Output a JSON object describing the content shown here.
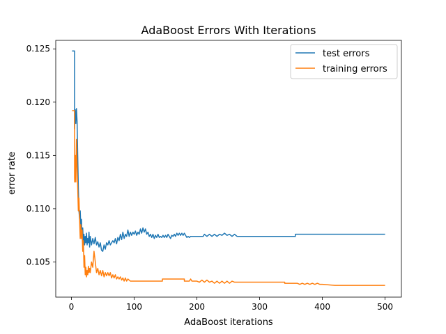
{
  "chart_data": {
    "type": "line",
    "title": "AdaBoost Errors With Iterations",
    "xlabel": "AdaBoost iterations",
    "ylabel": "error rate",
    "xlim": [
      -25,
      526
    ],
    "ylim": [
      0.1017,
      0.1258
    ],
    "xticks": [
      0,
      100,
      200,
      300,
      400,
      500
    ],
    "yticks": [
      0.105,
      0.11,
      0.115,
      0.12,
      0.125
    ],
    "ytick_labels": [
      "0.105",
      "0.110",
      "0.115",
      "0.120",
      "0.125"
    ],
    "grid": false,
    "legend_position": "top-right",
    "series": [
      {
        "name": "test errors",
        "color": "#1f77b4",
        "points": [
          [
            1,
            0.1248
          ],
          [
            5,
            0.1248
          ],
          [
            5,
            0.1175
          ],
          [
            6,
            0.1193
          ],
          [
            7,
            0.118
          ],
          [
            8,
            0.1194
          ],
          [
            9,
            0.1182
          ],
          [
            10,
            0.115
          ],
          [
            11,
            0.112
          ],
          [
            12,
            0.1098
          ],
          [
            13,
            0.109
          ],
          [
            14,
            0.1098
          ],
          [
            15,
            0.1082
          ],
          [
            16,
            0.109
          ],
          [
            17,
            0.1072
          ],
          [
            18,
            0.1082
          ],
          [
            19,
            0.1068
          ],
          [
            20,
            0.1076
          ],
          [
            21,
            0.1066
          ],
          [
            22,
            0.1074
          ],
          [
            23,
            0.1068
          ],
          [
            24,
            0.1077
          ],
          [
            25,
            0.1066
          ],
          [
            26,
            0.1072
          ],
          [
            27,
            0.1068
          ],
          [
            28,
            0.1078
          ],
          [
            29,
            0.1064
          ],
          [
            30,
            0.1074
          ],
          [
            32,
            0.1066
          ],
          [
            34,
            0.1072
          ],
          [
            36,
            0.1067
          ],
          [
            38,
            0.1073
          ],
          [
            40,
            0.1066
          ],
          [
            42,
            0.1069
          ],
          [
            44,
            0.1064
          ],
          [
            46,
            0.1068
          ],
          [
            48,
            0.1061
          ],
          [
            50,
            0.106
          ],
          [
            52,
            0.1066
          ],
          [
            54,
            0.1062
          ],
          [
            56,
            0.1068
          ],
          [
            58,
            0.1066
          ],
          [
            60,
            0.107
          ],
          [
            62,
            0.1066
          ],
          [
            64,
            0.1068
          ],
          [
            66,
            0.107
          ],
          [
            68,
            0.1068
          ],
          [
            70,
            0.1072
          ],
          [
            72,
            0.1067
          ],
          [
            74,
            0.1073
          ],
          [
            76,
            0.107
          ],
          [
            78,
            0.1076
          ],
          [
            80,
            0.1071
          ],
          [
            82,
            0.1078
          ],
          [
            84,
            0.1072
          ],
          [
            86,
            0.1076
          ],
          [
            88,
            0.1074
          ],
          [
            90,
            0.108
          ],
          [
            92,
            0.1074
          ],
          [
            94,
            0.1078
          ],
          [
            96,
            0.1075
          ],
          [
            98,
            0.1078
          ],
          [
            100,
            0.1076
          ],
          [
            102,
            0.1079
          ],
          [
            104,
            0.1075
          ],
          [
            106,
            0.1078
          ],
          [
            108,
            0.1076
          ],
          [
            110,
            0.1081
          ],
          [
            112,
            0.1077
          ],
          [
            114,
            0.1082
          ],
          [
            116,
            0.1078
          ],
          [
            118,
            0.1081
          ],
          [
            120,
            0.1076
          ],
          [
            122,
            0.1078
          ],
          [
            124,
            0.1074
          ],
          [
            126,
            0.1076
          ],
          [
            128,
            0.1073
          ],
          [
            130,
            0.1076
          ],
          [
            132,
            0.1072
          ],
          [
            134,
            0.1075
          ],
          [
            136,
            0.1073
          ],
          [
            138,
            0.1076
          ],
          [
            140,
            0.1073
          ],
          [
            142,
            0.1074
          ],
          [
            144,
            0.1073
          ],
          [
            146,
            0.1075
          ],
          [
            148,
            0.1073
          ],
          [
            150,
            0.1075
          ],
          [
            152,
            0.1073
          ],
          [
            154,
            0.1076
          ],
          [
            156,
            0.1074
          ],
          [
            158,
            0.1072
          ],
          [
            160,
            0.1075
          ],
          [
            162,
            0.1074
          ],
          [
            164,
            0.1076
          ],
          [
            166,
            0.1074
          ],
          [
            168,
            0.1077
          ],
          [
            170,
            0.1075
          ],
          [
            172,
            0.1077
          ],
          [
            174,
            0.1075
          ],
          [
            176,
            0.1077
          ],
          [
            178,
            0.1075
          ],
          [
            180,
            0.1077
          ],
          [
            182,
            0.1075
          ],
          [
            184,
            0.1073
          ],
          [
            186,
            0.1074
          ],
          [
            188,
            0.1073
          ],
          [
            190,
            0.1074
          ],
          [
            200,
            0.1074
          ],
          [
            210,
            0.1074
          ],
          [
            212,
            0.1076
          ],
          [
            216,
            0.1074
          ],
          [
            220,
            0.1076
          ],
          [
            224,
            0.1074
          ],
          [
            228,
            0.1076
          ],
          [
            232,
            0.1074
          ],
          [
            236,
            0.1076
          ],
          [
            240,
            0.1075
          ],
          [
            244,
            0.1077
          ],
          [
            248,
            0.1075
          ],
          [
            252,
            0.1076
          ],
          [
            256,
            0.1074
          ],
          [
            260,
            0.1076
          ],
          [
            264,
            0.1074
          ],
          [
            300,
            0.1074
          ],
          [
            357,
            0.1074
          ],
          [
            357,
            0.1076
          ],
          [
            400,
            0.1076
          ],
          [
            500,
            0.1076
          ]
        ]
      },
      {
        "name": "training errors",
        "color": "#ff7f0e",
        "points": [
          [
            1,
            0.1192
          ],
          [
            5,
            0.1192
          ],
          [
            5,
            0.1125
          ],
          [
            6,
            0.115
          ],
          [
            7,
            0.1125
          ],
          [
            8,
            0.1165
          ],
          [
            9,
            0.114
          ],
          [
            10,
            0.112
          ],
          [
            11,
            0.1098
          ],
          [
            12,
            0.111
          ],
          [
            13,
            0.109
          ],
          [
            14,
            0.1072
          ],
          [
            15,
            0.1085
          ],
          [
            16,
            0.1072
          ],
          [
            17,
            0.108
          ],
          [
            18,
            0.106
          ],
          [
            19,
            0.107
          ],
          [
            20,
            0.1045
          ],
          [
            21,
            0.1056
          ],
          [
            22,
            0.1038
          ],
          [
            23,
            0.1045
          ],
          [
            24,
            0.1036
          ],
          [
            25,
            0.1042
          ],
          [
            26,
            0.1038
          ],
          [
            27,
            0.1046
          ],
          [
            28,
            0.104
          ],
          [
            29,
            0.1044
          ],
          [
            30,
            0.104
          ],
          [
            32,
            0.105
          ],
          [
            34,
            0.1045
          ],
          [
            36,
            0.106
          ],
          [
            38,
            0.105
          ],
          [
            40,
            0.104
          ],
          [
            42,
            0.1044
          ],
          [
            44,
            0.1038
          ],
          [
            46,
            0.1042
          ],
          [
            48,
            0.1037
          ],
          [
            50,
            0.1042
          ],
          [
            52,
            0.1036
          ],
          [
            54,
            0.104
          ],
          [
            56,
            0.1037
          ],
          [
            58,
            0.104
          ],
          [
            60,
            0.1037
          ],
          [
            62,
            0.104
          ],
          [
            64,
            0.1035
          ],
          [
            66,
            0.1038
          ],
          [
            68,
            0.1035
          ],
          [
            70,
            0.1038
          ],
          [
            72,
            0.1034
          ],
          [
            74,
            0.1036
          ],
          [
            76,
            0.1034
          ],
          [
            78,
            0.1036
          ],
          [
            80,
            0.1033
          ],
          [
            82,
            0.1035
          ],
          [
            84,
            0.1032
          ],
          [
            86,
            0.1035
          ],
          [
            88,
            0.1032
          ],
          [
            90,
            0.1034
          ],
          [
            94,
            0.1032
          ],
          [
            100,
            0.1032
          ],
          [
            110,
            0.1032
          ],
          [
            120,
            0.1032
          ],
          [
            130,
            0.1032
          ],
          [
            140,
            0.1032
          ],
          [
            145,
            0.1032
          ],
          [
            145,
            0.1034
          ],
          [
            180,
            0.1034
          ],
          [
            180,
            0.1032
          ],
          [
            188,
            0.1032
          ],
          [
            190,
            0.1034
          ],
          [
            192,
            0.1032
          ],
          [
            200,
            0.1032
          ],
          [
            204,
            0.1031
          ],
          [
            208,
            0.1033
          ],
          [
            212,
            0.1031
          ],
          [
            216,
            0.1033
          ],
          [
            220,
            0.1031
          ],
          [
            224,
            0.1032
          ],
          [
            228,
            0.103
          ],
          [
            232,
            0.1032
          ],
          [
            236,
            0.103
          ],
          [
            240,
            0.1032
          ],
          [
            244,
            0.103
          ],
          [
            248,
            0.1032
          ],
          [
            252,
            0.103
          ],
          [
            256,
            0.1032
          ],
          [
            260,
            0.1031
          ],
          [
            262,
            0.1031
          ],
          [
            280,
            0.1031
          ],
          [
            300,
            0.1031
          ],
          [
            340,
            0.1031
          ],
          [
            340,
            0.103
          ],
          [
            360,
            0.103
          ],
          [
            364,
            0.1029
          ],
          [
            368,
            0.103
          ],
          [
            372,
            0.1029
          ],
          [
            376,
            0.103
          ],
          [
            380,
            0.1029
          ],
          [
            384,
            0.103
          ],
          [
            388,
            0.1029
          ],
          [
            392,
            0.103
          ],
          [
            396,
            0.1029
          ],
          [
            400,
            0.1029
          ],
          [
            420,
            0.1028
          ],
          [
            450,
            0.1028
          ],
          [
            480,
            0.1028
          ],
          [
            500,
            0.1028
          ]
        ]
      }
    ]
  }
}
